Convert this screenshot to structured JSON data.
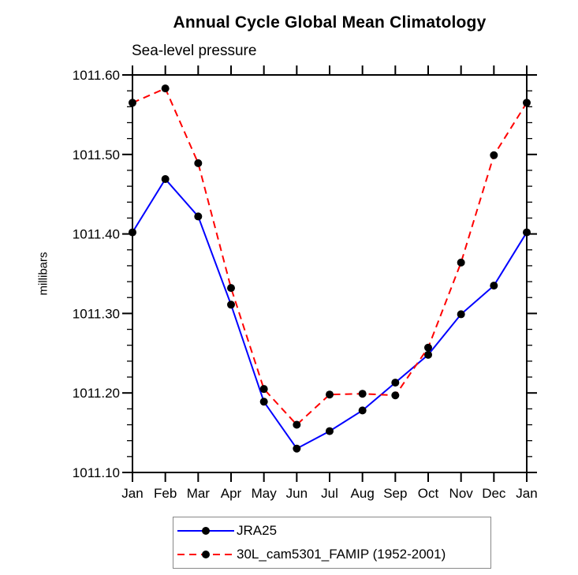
{
  "chart_data": {
    "type": "line",
    "title": "Annual Cycle Global Mean Climatology",
    "subtitle": "Sea-level pressure",
    "ylabel": "millibars",
    "xlabel": "",
    "categories": [
      "Jan",
      "Feb",
      "Mar",
      "Apr",
      "May",
      "Jun",
      "Jul",
      "Aug",
      "Sep",
      "Oct",
      "Nov",
      "Dec",
      "Jan"
    ],
    "ylim": [
      1011.1,
      1011.6
    ],
    "ytick_major": 0.1,
    "ytick_minor": 0.02,
    "ytick_decimals": 2,
    "grid": false,
    "legend_position": "bottom",
    "axis_color": "#000000",
    "marker_color": "#000000",
    "marker_radius": 5,
    "series": [
      {
        "name": "JRA25",
        "color": "#0000ff",
        "dash": "",
        "values": [
          1011.402,
          1011.469,
          1011.422,
          1011.311,
          1011.189,
          1011.13,
          1011.152,
          1011.178,
          1011.213,
          1011.248,
          1011.299,
          1011.335,
          1011.402
        ]
      },
      {
        "name": "30L_cam5301_FAMIP (1952-2001)",
        "color": "#ff0000",
        "dash": "9,6",
        "values": [
          1011.565,
          1011.583,
          1011.489,
          1011.332,
          1011.205,
          1011.16,
          1011.198,
          1011.199,
          1011.197,
          1011.257,
          1011.364,
          1011.499,
          1011.565
        ]
      }
    ]
  }
}
